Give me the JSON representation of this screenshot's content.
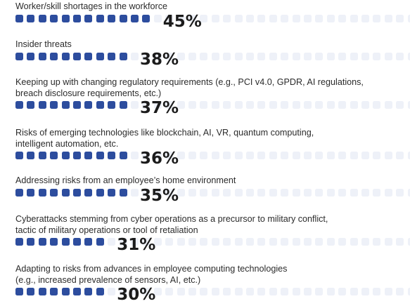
{
  "colors": {
    "filled": "#2d4d9e",
    "empty": "#eef1f8",
    "text": "#2b2b2b",
    "value": "#1b1b1b"
  },
  "chart_data": {
    "type": "bar",
    "title": "",
    "categories": [
      "Worker/skill shortages in the workforce",
      "Insider threats",
      "Keeping up with changing regulatory requirements (e.g., PCI v4.0, GPDR, AI regulations, breach disclosure requirements, etc.)",
      "Risks of emerging technologies like blockchain, AI, VR, quantum computing, intelligent automation, etc.",
      "Addressing risks from an employee’s home environment",
      "Cyberattacks stemming from cyber operations as a precursor to military conflict, tactic of military operations or tool of retaliation",
      "Adapting to risks from advances in employee computing technologies (e.g., increased prevalence of sensors, AI, etc.)"
    ],
    "label_lines": [
      [
        "Worker/skill shortages in the workforce"
      ],
      [
        "Insider threats"
      ],
      [
        "Keeping up with changing regulatory requirements (e.g., PCI v4.0, GPDR, AI regulations,",
        "breach disclosure requirements, etc.)"
      ],
      [
        "Risks of emerging technologies like blockchain, AI, VR, quantum computing,",
        "intelligent automation, etc."
      ],
      [
        "Addressing risks from an employee’s home environment"
      ],
      [
        "Cyberattacks stemming from cyber operations as a precursor to military conflict,",
        "tactic of military operations or tool of retaliation"
      ],
      [
        "Adapting to risks from advances in employee computing technologies",
        "(e.g., increased prevalence of sensors, AI, etc.)"
      ]
    ],
    "values": [
      45,
      38,
      37,
      36,
      35,
      31,
      30
    ],
    "value_labels": [
      "45%",
      "38%",
      "37%",
      "36%",
      "35%",
      "31%",
      "30%"
    ],
    "xlabel": "",
    "ylabel": "",
    "ylim": [
      0,
      100
    ],
    "grid": false,
    "legend": "none"
  }
}
